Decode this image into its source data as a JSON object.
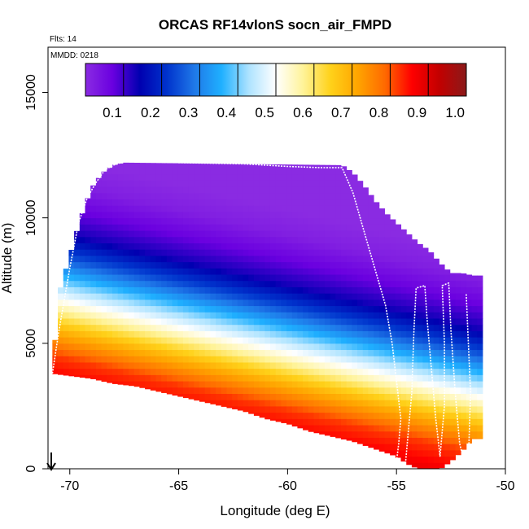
{
  "chart_data": {
    "type": "heatmap",
    "title": "ORCAS RF14vlonS socn_air_FMPD",
    "annotations": {
      "flights": "Flts: 14",
      "date": "MMDD: 0218"
    },
    "xlabel": "Longitude (deg E)",
    "ylabel": "Altitude (m)",
    "xlim": [
      -71,
      -50
    ],
    "ylim": [
      0,
      16800
    ],
    "x_ticks": [
      -70,
      -65,
      -60,
      -55,
      -50
    ],
    "x_tick_labels": [
      "-70",
      "-65",
      "-60",
      "-55",
      "-50"
    ],
    "y_ticks": [
      0,
      5000,
      10000,
      15000
    ],
    "y_tick_labels": [
      "0",
      "5000",
      "10000",
      "15000"
    ],
    "colorbar": {
      "range": [
        0,
        1
      ],
      "ticks": [
        0.1,
        0.2,
        0.3,
        0.4,
        0.5,
        0.6,
        0.7,
        0.8,
        0.9,
        1.0
      ],
      "tick_labels": [
        "0.1",
        "0.2",
        "0.3",
        "0.4",
        "0.5",
        "0.6",
        "0.7",
        "0.8",
        "0.9",
        "1.0"
      ],
      "colors": [
        "#8a2be2",
        "#6a00e0",
        "#0000b0",
        "#0033cc",
        "#1f78e8",
        "#1fb0ff",
        "#aee3ff",
        "#ffffff",
        "#fff39a",
        "#ffd21a",
        "#ffa500",
        "#ff6a00",
        "#ff0000",
        "#c20000",
        "#8b1a1a"
      ]
    },
    "domain_top": [
      [
        -70.8,
        3800
      ],
      [
        -70.5,
        7000
      ],
      [
        -70.0,
        8500
      ],
      [
        -69.5,
        10000
      ],
      [
        -69.0,
        11200
      ],
      [
        -68.5,
        11800
      ],
      [
        -68.0,
        12100
      ],
      [
        -67.5,
        12200
      ],
      [
        -57.5,
        12100
      ],
      [
        -57.0,
        11800
      ],
      [
        -56.5,
        11300
      ],
      [
        -56.0,
        10700
      ],
      [
        -55.5,
        10200
      ],
      [
        -55.0,
        9800
      ],
      [
        -54.5,
        9400
      ],
      [
        -54.0,
        9000
      ],
      [
        -53.5,
        8700
      ],
      [
        -53.0,
        8200
      ],
      [
        -52.5,
        7800
      ],
      [
        -52.0,
        7800
      ],
      [
        -51.5,
        7700
      ],
      [
        -51.2,
        7700
      ]
    ],
    "domain_bottom": [
      [
        -70.8,
        3800
      ],
      [
        -69.0,
        3600
      ],
      [
        -68.0,
        3400
      ],
      [
        -67.0,
        3300
      ],
      [
        -66.0,
        3100
      ],
      [
        -65.0,
        2900
      ],
      [
        -64.0,
        2700
      ],
      [
        -63.0,
        2500
      ],
      [
        -62.0,
        2300
      ],
      [
        -61.0,
        2000
      ],
      [
        -60.0,
        1800
      ],
      [
        -59.0,
        1500
      ],
      [
        -58.0,
        1300
      ],
      [
        -57.0,
        1100
      ],
      [
        -56.0,
        800
      ],
      [
        -55.0,
        500
      ],
      [
        -54.5,
        200
      ],
      [
        -54.0,
        0
      ],
      [
        -53.0,
        0
      ],
      [
        -52.5,
        300
      ],
      [
        -52.0,
        700
      ],
      [
        -51.5,
        1200
      ],
      [
        -51.2,
        1200
      ]
    ],
    "value_levels": [
      {
        "altitude": 0,
        "value": 0.95
      },
      {
        "altitude": 3000,
        "value": 0.9
      },
      {
        "altitude": 4500,
        "value": 0.82
      },
      {
        "altitude": 5500,
        "value": 0.7
      },
      {
        "altitude": 6500,
        "value": 0.55
      },
      {
        "altitude": 7500,
        "value": 0.4
      },
      {
        "altitude": 8500,
        "value": 0.25
      },
      {
        "altitude": 9500,
        "value": 0.13
      },
      {
        "altitude": 10500,
        "value": 0.07
      },
      {
        "altitude": 11500,
        "value": 0.02
      },
      {
        "altitude": 12500,
        "value": 0.0
      }
    ],
    "level_shift_per_deg_east": -200,
    "flight_track": [
      [
        -70.8,
        3800
      ],
      [
        -70.5,
        5500
      ],
      [
        -70.0,
        8000
      ],
      [
        -69.6,
        9800
      ],
      [
        -69.2,
        10800
      ],
      [
        -68.8,
        11400
      ],
      [
        -68.4,
        11900
      ],
      [
        -68.0,
        12100
      ],
      [
        -67.5,
        12250
      ],
      [
        -65.0,
        12200
      ],
      [
        -62.0,
        12150
      ],
      [
        -60.0,
        12050
      ],
      [
        -58.5,
        12000
      ],
      [
        -57.5,
        12000
      ],
      [
        -57.0,
        11000
      ],
      [
        -56.5,
        9500
      ],
      [
        -56.0,
        8000
      ],
      [
        -55.5,
        6500
      ],
      [
        -55.2,
        5000
      ],
      [
        -55.0,
        3500
      ],
      [
        -54.8,
        2000
      ],
      [
        -54.9,
        1000
      ],
      [
        -55.0,
        300
      ],
      [
        -54.6,
        100
      ],
      [
        -54.3,
        3000
      ],
      [
        -54.2,
        5500
      ],
      [
        -54.1,
        7200
      ],
      [
        -53.7,
        7300
      ],
      [
        -53.6,
        6000
      ],
      [
        -53.4,
        4000
      ],
      [
        -53.2,
        2000
      ],
      [
        -53.0,
        500
      ],
      [
        -52.8,
        2500
      ],
      [
        -52.8,
        5000
      ],
      [
        -52.9,
        7300
      ],
      [
        -52.6,
        7400
      ],
      [
        -52.5,
        5500
      ],
      [
        -52.3,
        3000
      ],
      [
        -52.1,
        1000
      ],
      [
        -51.9,
        300
      ],
      [
        -51.7,
        300
      ],
      [
        -51.6,
        3000
      ],
      [
        -51.8,
        7000
      ]
    ],
    "marker": {
      "type": "down-arrow",
      "longitude": -70.85
    }
  }
}
